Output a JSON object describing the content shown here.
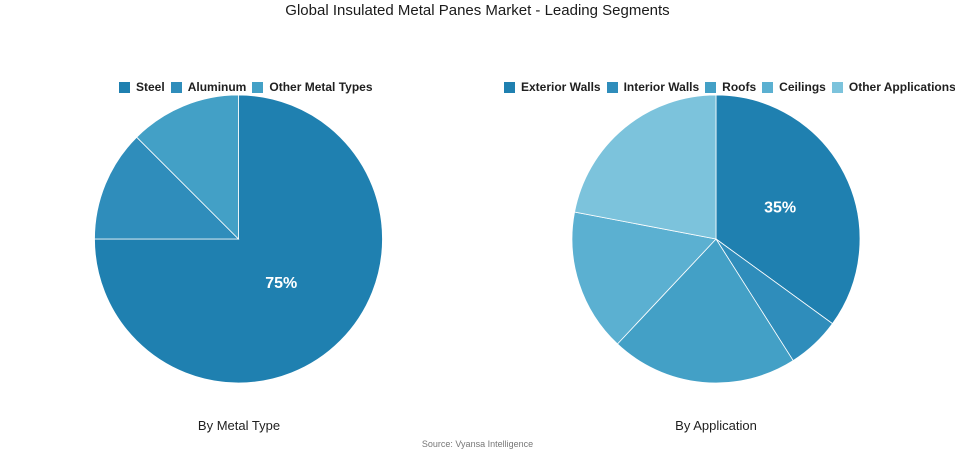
{
  "title": "Global Insulated Metal Panes Market - Leading Segments",
  "source": "Source: Vyansa Intelligence",
  "chart_data": [
    {
      "type": "pie",
      "caption": "By Metal Type",
      "legend_position": "top",
      "slices": [
        {
          "label": "Steel",
          "value": 75,
          "color": "#1f80b0",
          "data_label": "75%"
        },
        {
          "label": "Aluminum",
          "value": 12.5,
          "color": "#2f8dbb",
          "data_label": ""
        },
        {
          "label": "Other Metal Types",
          "value": 12.5,
          "color": "#43a0c6",
          "data_label": ""
        }
      ]
    },
    {
      "type": "pie",
      "caption": "By Application",
      "legend_position": "top",
      "slices": [
        {
          "label": "Exterior Walls",
          "value": 35,
          "color": "#1f80b0",
          "data_label": "35%"
        },
        {
          "label": "Interior Walls",
          "value": 6,
          "color": "#2f8dbb",
          "data_label": ""
        },
        {
          "label": "Roofs",
          "value": 21,
          "color": "#43a0c6",
          "data_label": ""
        },
        {
          "label": "Ceilings",
          "value": 16,
          "color": "#5bb0d1",
          "data_label": ""
        },
        {
          "label": "Other Applications",
          "value": 22,
          "color": "#7cc3dc",
          "data_label": ""
        }
      ]
    }
  ]
}
